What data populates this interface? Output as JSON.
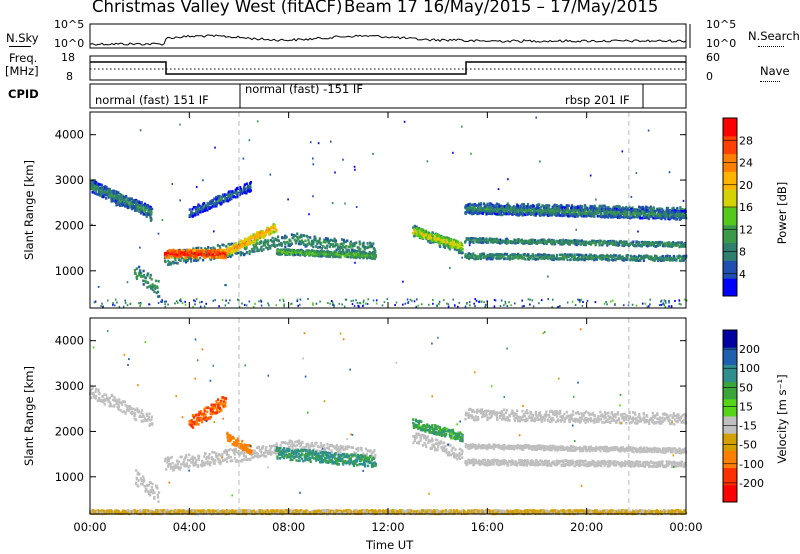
{
  "title": "Christmas Valley West (fitACF)",
  "beam_info": "Beam 17  16/May/2015 – 17/May/2015",
  "nsky": {
    "label": "N.Sky",
    "left_top": "10^5",
    "left_bottom": "10^0",
    "right_top": "10^5",
    "right_bottom": "10^0",
    "right_label": "N.Search"
  },
  "freq": {
    "label_line1": "Freq.",
    "label_line2": "[MHz]",
    "left_top": "18",
    "left_bottom": "8",
    "right_top": "60",
    "right_bottom": "0",
    "right_label": "Nave"
  },
  "cpid": {
    "label": "CPID",
    "segments": [
      {
        "text": "normal (fast) 151 IF",
        "start_hour": 0
      },
      {
        "text": "normal (fast) -151 IF",
        "start_hour": 6.0
      },
      {
        "text": "rbsp 201 IF",
        "start_hour": 21.7
      }
    ]
  },
  "colors": {
    "background": "#ffffff",
    "axis": "#000000",
    "ground_scatter_gray": "#bfbfbf",
    "power_scale": [
      "#0000ff",
      "#1f4fb0",
      "#2f7f6f",
      "#3a9a4a",
      "#55c81e",
      "#d4d200",
      "#ffb400",
      "#ff8000",
      "#ff4000",
      "#ff0000"
    ],
    "velocity_scale": [
      "#0000a0",
      "#1f5fb0",
      "#2f8f8f",
      "#3aa63a",
      "#55d41a",
      "#bfbfbf",
      "#d4a000",
      "#ff8000",
      "#ff3000",
      "#ff0000"
    ]
  },
  "chart_data": [
    {
      "type": "heatmap",
      "name": "power",
      "ylabel": "Slant Range [km]",
      "yticks": [
        "1000",
        "2000",
        "3000",
        "4000"
      ],
      "ylim": [
        180,
        4500
      ],
      "xlim_hours": [
        0,
        24
      ],
      "colorbar_label": "Power [dB]",
      "colorbar_ticks": [
        "4",
        "8",
        "12",
        "16",
        "20",
        "24",
        "28"
      ],
      "colorbar_range": [
        0,
        30
      ]
    },
    {
      "type": "heatmap",
      "name": "velocity",
      "ylabel": "Slant Range [km]",
      "yticks": [
        "1000",
        "2000",
        "3000",
        "4000"
      ],
      "ylim": [
        180,
        4500
      ],
      "xlim_hours": [
        0,
        24
      ],
      "colorbar_label": "Velocity [m s⁻¹]",
      "colorbar_ticks": [
        "200",
        "100",
        "50",
        "15",
        "-15",
        "-50",
        "-100",
        "-200"
      ],
      "colorbar_range": [
        -250,
        250
      ]
    }
  ],
  "xaxis": {
    "label": "Time UT",
    "ticks": [
      "00:00",
      "04:00",
      "08:00",
      "12:00",
      "16:00",
      "20:00",
      "00:00"
    ],
    "tick_hours": [
      0,
      4,
      8,
      12,
      16,
      20,
      24
    ]
  },
  "ground_scatter_segments": [
    {
      "h0": 0.0,
      "h1": 2.5,
      "r0": 2900,
      "r1": 2250,
      "width": 280
    },
    {
      "h0": 3.0,
      "h1": 6.5,
      "r0": 1300,
      "r1": 1550,
      "width": 300
    },
    {
      "h0": 6.5,
      "h1": 8.5,
      "r0": 1550,
      "r1": 1750,
      "width": 250
    },
    {
      "h0": 8.5,
      "h1": 11.5,
      "r0": 1700,
      "r1": 1500,
      "width": 250
    },
    {
      "h0": 13.0,
      "h1": 15.0,
      "r0": 1900,
      "r1": 1500,
      "width": 250
    },
    {
      "h0": 15.1,
      "h1": 24.0,
      "r0": 2400,
      "r1": 2300,
      "width": 250
    },
    {
      "h0": 15.1,
      "h1": 24.0,
      "r0": 1700,
      "r1": 1600,
      "width": 100
    },
    {
      "h0": 15.1,
      "h1": 24.0,
      "r0": 1350,
      "r1": 1300,
      "width": 120
    },
    {
      "h0": 1.8,
      "h1": 2.8,
      "r0": 1000,
      "r1": 600,
      "width": 350
    }
  ],
  "power_segments": [
    {
      "h0": 3.0,
      "h1": 5.5,
      "r0": 1400,
      "r1": 1400,
      "width": 180,
      "level": 28
    },
    {
      "h0": 5.5,
      "h1": 7.5,
      "r0": 1450,
      "r1": 2000,
      "width": 180,
      "level": 22
    },
    {
      "h0": 7.5,
      "h1": 11.5,
      "r0": 1450,
      "r1": 1350,
      "width": 120,
      "level": 14
    },
    {
      "h0": 13.0,
      "h1": 15.0,
      "r0": 1900,
      "r1": 1550,
      "width": 200,
      "level": 18
    },
    {
      "h0": 0.0,
      "h1": 2.5,
      "r0": 2900,
      "r1": 2300,
      "width": 250,
      "level": 10
    },
    {
      "h0": 15.1,
      "h1": 24.0,
      "r0": 2400,
      "r1": 2250,
      "width": 200,
      "level": 10
    },
    {
      "h0": 4.0,
      "h1": 6.5,
      "r0": 2300,
      "r1": 2900,
      "width": 200,
      "level": 8
    }
  ],
  "velocity_segments": [
    {
      "h0": 4.0,
      "h1": 5.5,
      "r0": 2200,
      "r1": 2700,
      "width": 300,
      "level": -200
    },
    {
      "h0": 5.5,
      "h1": 6.5,
      "r0": 1900,
      "r1": 1600,
      "width": 200,
      "level": -150
    },
    {
      "h0": 7.5,
      "h1": 11.5,
      "r0": 1550,
      "r1": 1350,
      "width": 250,
      "level": 60
    },
    {
      "h0": 13.0,
      "h1": 15.0,
      "r0": 2200,
      "r1": 1900,
      "width": 200,
      "level": 40
    },
    {
      "h0": 0.0,
      "h1": 24.0,
      "r0": 250,
      "r1": 250,
      "width": 80,
      "level": -60
    }
  ]
}
